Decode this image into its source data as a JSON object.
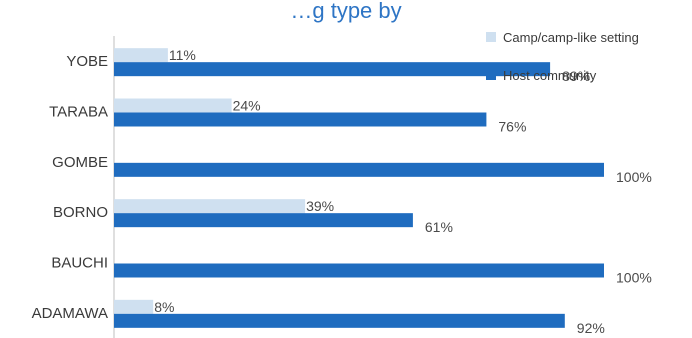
{
  "chart_data": {
    "type": "bar",
    "orientation": "horizontal",
    "title": "…g type by",
    "categories": [
      "YOBE",
      "TARABA",
      "GOMBE",
      "BORNO",
      "BAUCHI",
      "ADAMAWA"
    ],
    "series": [
      {
        "name": "Camp/camp-like setting",
        "color": "#cfe0f0",
        "values": [
          11,
          24,
          null,
          39,
          null,
          8
        ],
        "labels": [
          "11%",
          "24%",
          "",
          "39%",
          "",
          "8%"
        ]
      },
      {
        "name": "Host community",
        "color": "#1f6cbf",
        "values": [
          89,
          76,
          100,
          61,
          100,
          92
        ],
        "labels": [
          "89%",
          "76%",
          "100%",
          "61%",
          "100%",
          "92%"
        ]
      }
    ],
    "value_axis": {
      "unit": "%",
      "shown": false
    },
    "grid": false,
    "legend_position": "top-right"
  }
}
